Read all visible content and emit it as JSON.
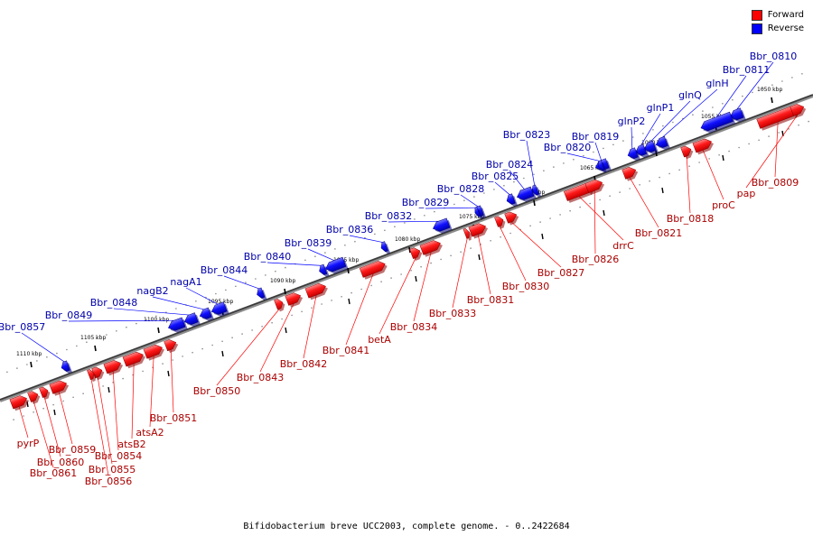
{
  "legend": {
    "forward_label": "Forward",
    "reverse_label": "Reverse",
    "forward_color": "#ff0000",
    "reverse_color": "#0000ff"
  },
  "caption": "Bifidobacterium breve UCC2003, complete genome. - 0..2422684",
  "ticks": [
    {
      "label": "1050 kbp"
    },
    {
      "label": "1055 kbp"
    },
    {
      "label": "1060 kbp"
    },
    {
      "label": "1065 kbp"
    },
    {
      "label": "1070 kbp"
    },
    {
      "label": "1075 kbp"
    },
    {
      "label": "1080 kbp"
    },
    {
      "label": "1085 kbp"
    },
    {
      "label": "1090 kbp"
    },
    {
      "label": "1095 kbp"
    },
    {
      "label": "1100 kbp"
    },
    {
      "label": "1105 kbp"
    },
    {
      "label": "1110 kbp"
    }
  ],
  "reverse_genes": [
    {
      "name": "Bbr_0810"
    },
    {
      "name": "Bbr_0811"
    },
    {
      "name": "glnH"
    },
    {
      "name": "glnQ"
    },
    {
      "name": "glnP1"
    },
    {
      "name": "glnP2"
    },
    {
      "name": "Bbr_0819"
    },
    {
      "name": "Bbr_0820"
    },
    {
      "name": "Bbr_0823"
    },
    {
      "name": "Bbr_0824"
    },
    {
      "name": "Bbr_0825"
    },
    {
      "name": "Bbr_0828"
    },
    {
      "name": "Bbr_0829"
    },
    {
      "name": "Bbr_0832"
    },
    {
      "name": "Bbr_0836"
    },
    {
      "name": "Bbr_0839"
    },
    {
      "name": "Bbr_0840"
    },
    {
      "name": "Bbr_0844"
    },
    {
      "name": "nagA1"
    },
    {
      "name": "nagB2"
    },
    {
      "name": "Bbr_0848"
    },
    {
      "name": "Bbr_0849"
    },
    {
      "name": "Bbr_0857"
    }
  ],
  "forward_genes": [
    {
      "name": "Bbr_0809"
    },
    {
      "name": "pap"
    },
    {
      "name": "proC"
    },
    {
      "name": "Bbr_0818"
    },
    {
      "name": "Bbr_0821"
    },
    {
      "name": "drrC"
    },
    {
      "name": "Bbr_0826"
    },
    {
      "name": "Bbr_0827"
    },
    {
      "name": "Bbr_0830"
    },
    {
      "name": "Bbr_0831"
    },
    {
      "name": "Bbr_0833"
    },
    {
      "name": "Bbr_0834"
    },
    {
      "name": "betA"
    },
    {
      "name": "Bbr_0841"
    },
    {
      "name": "Bbr_0842"
    },
    {
      "name": "Bbr_0843"
    },
    {
      "name": "Bbr_0850"
    },
    {
      "name": "Bbr_0851"
    },
    {
      "name": "atsA2"
    },
    {
      "name": "atsB2"
    },
    {
      "name": "Bbr_0854"
    },
    {
      "name": "Bbr_0855"
    },
    {
      "name": "Bbr_0856"
    },
    {
      "name": "Bbr_0859"
    },
    {
      "name": "Bbr_0860"
    },
    {
      "name": "Bbr_0861"
    },
    {
      "name": "pyrP"
    }
  ]
}
